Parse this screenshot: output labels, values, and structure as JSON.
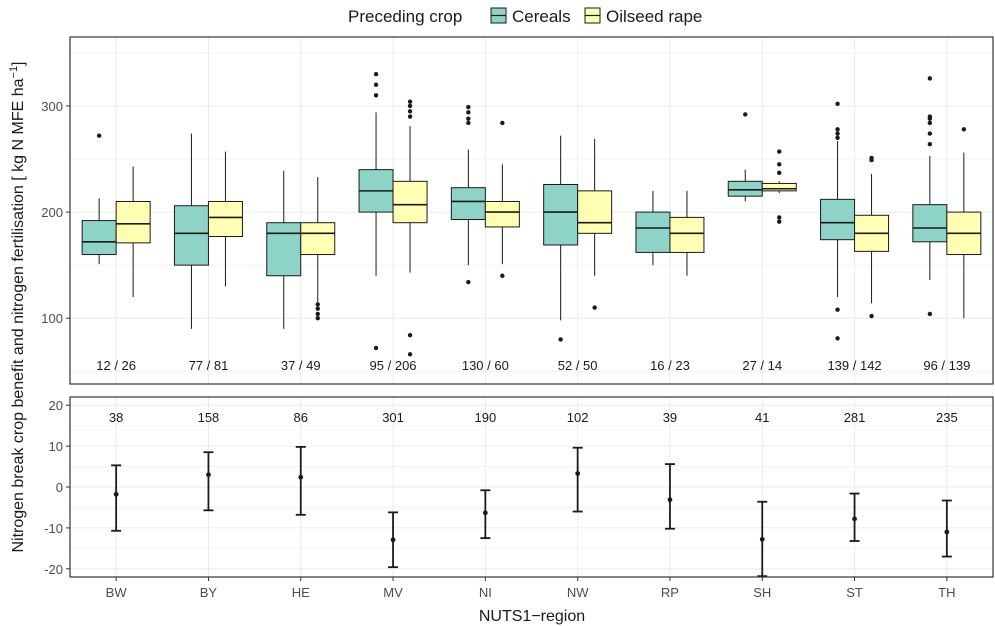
{
  "legend": {
    "title": "Preceding crop",
    "items": [
      {
        "label": "Cereals",
        "color": "#8dd3c7"
      },
      {
        "label": "Oilseed rape",
        "color": "#ffffb3"
      }
    ]
  },
  "x_axis_title": "NUTS1−region",
  "y_axis_title_main": "Nitrogen break crop benefit and nitrogen fertilisation [ kg N MFE ha",
  "y_axis_title_sup": "−1",
  "y_axis_title_end": "]",
  "chart_data": [
    {
      "type": "box",
      "panel": "top",
      "categories": [
        "BW",
        "BY",
        "HE",
        "MV",
        "NI",
        "NW",
        "RP",
        "SH",
        "ST",
        "TH"
      ],
      "ylim": [
        38,
        365
      ],
      "yticks": [
        100,
        200,
        300
      ],
      "grid": true,
      "count_labels": [
        "12 / 26",
        "77 / 81",
        "37 / 49",
        "95 / 206",
        "130 / 60",
        "52 / 50",
        "16 / 23",
        "27 / 14",
        "139 / 142",
        "96 / 139"
      ],
      "series": [
        {
          "name": "Cereals",
          "color": "#8dd3c7",
          "boxes": [
            {
              "min": 151,
              "q1": 160,
              "median": 172,
              "q3": 192,
              "max": 213,
              "outliers": [
                272
              ]
            },
            {
              "min": 90,
              "q1": 150,
              "median": 180,
              "q3": 206,
              "max": 274,
              "outliers": []
            },
            {
              "min": 90,
              "q1": 140,
              "median": 180,
              "q3": 190,
              "max": 239,
              "outliers": []
            },
            {
              "min": 140,
              "q1": 200,
              "median": 220,
              "q3": 240,
              "max": 294,
              "outliers": [
                72,
                310,
                320,
                330
              ]
            },
            {
              "min": 150,
              "q1": 193,
              "median": 210,
              "q3": 223,
              "max": 259,
              "outliers": [
                134,
                284,
                288,
                294,
                299
              ]
            },
            {
              "min": 98,
              "q1": 169,
              "median": 200,
              "q3": 226,
              "max": 272,
              "outliers": [
                80
              ]
            },
            {
              "min": 150,
              "q1": 162,
              "median": 185,
              "q3": 200,
              "max": 220,
              "outliers": []
            },
            {
              "min": 210,
              "q1": 215,
              "median": 221,
              "q3": 229,
              "max": 240,
              "outliers": [
                292
              ]
            },
            {
              "min": 120,
              "q1": 174,
              "median": 190,
              "q3": 212,
              "max": 267,
              "outliers": [
                81,
                108,
                270,
                274,
                278,
                302
              ]
            },
            {
              "min": 136,
              "q1": 172,
              "median": 185,
              "q3": 207,
              "max": 253,
              "outliers": [
                104,
                264,
                274,
                284,
                288,
                290,
                326
              ]
            }
          ]
        },
        {
          "name": "Oilseed rape",
          "color": "#ffffb3",
          "boxes": [
            {
              "min": 120,
              "q1": 171,
              "median": 189,
              "q3": 210,
              "max": 243,
              "outliers": []
            },
            {
              "min": 130,
              "q1": 177,
              "median": 195,
              "q3": 210,
              "max": 257,
              "outliers": []
            },
            {
              "min": 115,
              "q1": 160,
              "median": 180,
              "q3": 190,
              "max": 233,
              "outliers": [
                100,
                104,
                109,
                113
              ]
            },
            {
              "min": 143,
              "q1": 190,
              "median": 207,
              "q3": 229,
              "max": 281,
              "outliers": [
                66,
                84,
                290,
                295,
                300,
                304
              ]
            },
            {
              "min": 151,
              "q1": 186,
              "median": 200,
              "q3": 210,
              "max": 245,
              "outliers": [
                140,
                284
              ]
            },
            {
              "min": 140,
              "q1": 180,
              "median": 190,
              "q3": 220,
              "max": 269,
              "outliers": [
                110
              ]
            },
            {
              "min": 140,
              "q1": 162,
              "median": 180,
              "q3": 195,
              "max": 220,
              "outliers": []
            },
            {
              "min": 218,
              "q1": 220,
              "median": 222,
              "q3": 227,
              "max": 229,
              "outliers": [
                191,
                195,
                237,
                245,
                257
              ]
            },
            {
              "min": 114,
              "q1": 163,
              "median": 180,
              "q3": 197,
              "max": 236,
              "outliers": [
                102,
                249,
                251
              ]
            },
            {
              "min": 100,
              "q1": 160,
              "median": 180,
              "q3": 200,
              "max": 256,
              "outliers": [
                278
              ]
            }
          ]
        }
      ]
    },
    {
      "type": "errorbar",
      "panel": "bottom",
      "categories": [
        "BW",
        "BY",
        "HE",
        "MV",
        "NI",
        "NW",
        "RP",
        "SH",
        "ST",
        "TH"
      ],
      "ylim": [
        -22,
        22
      ],
      "yticks": [
        -20,
        -10,
        0,
        10,
        20
      ],
      "grid": true,
      "count_labels": [
        "38",
        "158",
        "86",
        "301",
        "190",
        "102",
        "39",
        "41",
        "281",
        "235"
      ],
      "points": [
        {
          "estimate": -1.8,
          "lower": -10.7,
          "upper": 5.3
        },
        {
          "estimate": 3.0,
          "lower": -5.7,
          "upper": 8.5
        },
        {
          "estimate": 2.4,
          "lower": -6.8,
          "upper": 9.8
        },
        {
          "estimate": -12.9,
          "lower": -19.6,
          "upper": -6.2
        },
        {
          "estimate": -6.3,
          "lower": -12.5,
          "upper": -0.8
        },
        {
          "estimate": 3.3,
          "lower": -6.0,
          "upper": 9.6
        },
        {
          "estimate": -3.1,
          "lower": -10.2,
          "upper": 5.6
        },
        {
          "estimate": -12.8,
          "lower": -21.8,
          "upper": -3.6
        },
        {
          "estimate": -7.8,
          "lower": -13.2,
          "upper": -1.6
        },
        {
          "estimate": -11.0,
          "lower": -17.0,
          "upper": -3.3
        }
      ]
    }
  ]
}
